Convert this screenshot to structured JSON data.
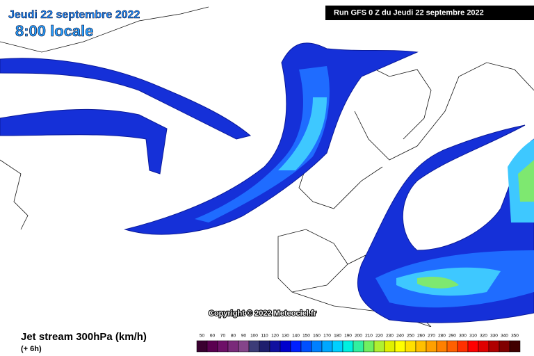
{
  "header": {
    "date": "Jeudi 22 septembre 2022",
    "time": "8:00 locale",
    "run": "Run GFS 0 Z du Jeudi 22 septembre 2022"
  },
  "copyright": "Copyright © 2022 Meteociel.fr",
  "legend": {
    "title": "Jet stream 300hPa (km/h)",
    "step": "(+ 6h)",
    "scale": [
      {
        "value": 50,
        "color": "#3a0030"
      },
      {
        "value": 60,
        "color": "#5a0050"
      },
      {
        "value": 70,
        "color": "#6e1068"
      },
      {
        "value": 80,
        "color": "#7a2a7a"
      },
      {
        "value": 90,
        "color": "#85458a"
      },
      {
        "value": 100,
        "color": "#3c3c78"
      },
      {
        "value": 110,
        "color": "#1e1e6e"
      },
      {
        "value": 120,
        "color": "#1010a0"
      },
      {
        "value": 130,
        "color": "#0000cd"
      },
      {
        "value": 140,
        "color": "#0020ff"
      },
      {
        "value": 150,
        "color": "#0050ff"
      },
      {
        "value": 160,
        "color": "#0080ff"
      },
      {
        "value": 170,
        "color": "#00a8ff"
      },
      {
        "value": 180,
        "color": "#00d0ff"
      },
      {
        "value": 190,
        "color": "#00f0e0"
      },
      {
        "value": 200,
        "color": "#30f0a0"
      },
      {
        "value": 210,
        "color": "#70f060"
      },
      {
        "value": 220,
        "color": "#b0f030"
      },
      {
        "value": 230,
        "color": "#e0f000"
      },
      {
        "value": 240,
        "color": "#ffff00"
      },
      {
        "value": 250,
        "color": "#ffe000"
      },
      {
        "value": 260,
        "color": "#ffc000"
      },
      {
        "value": 270,
        "color": "#ffa000"
      },
      {
        "value": 280,
        "color": "#ff8000"
      },
      {
        "value": 290,
        "color": "#ff6000"
      },
      {
        "value": 300,
        "color": "#ff3000"
      },
      {
        "value": 310,
        "color": "#ff0000"
      },
      {
        "value": 320,
        "color": "#e00000"
      },
      {
        "value": 330,
        "color": "#b00000"
      },
      {
        "value": 340,
        "color": "#800000"
      },
      {
        "value": 350,
        "color": "#400000"
      }
    ]
  }
}
